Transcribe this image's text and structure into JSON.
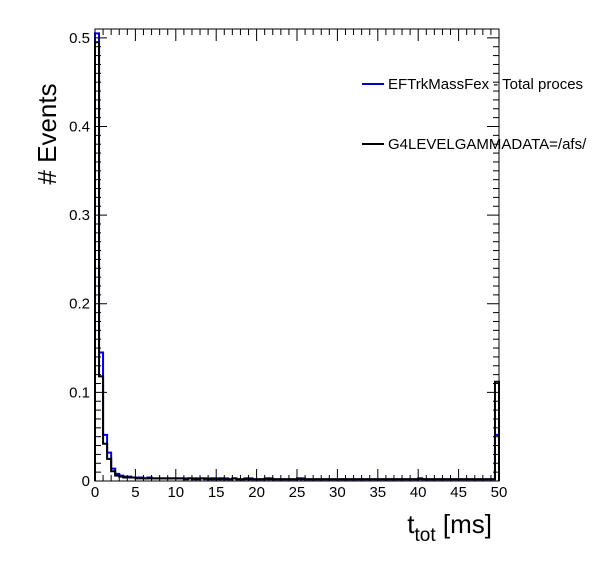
{
  "chart_data": {
    "type": "step-histogram",
    "xlabel": {
      "main": "t",
      "sub": "tot",
      "unit": " [ms]"
    },
    "ylabel": "# Events",
    "xlim": [
      0,
      50
    ],
    "ylim": [
      0,
      0.51
    ],
    "x_ticks": [
      "0",
      "5",
      "10",
      "15",
      "20",
      "25",
      "30",
      "35",
      "40",
      "45",
      "50"
    ],
    "y_ticks": [
      "0",
      "0.1",
      "0.2",
      "0.3",
      "0.4",
      "0.5"
    ],
    "grid": false,
    "legend_position": "top-right",
    "bin_width": 0.5,
    "series": [
      {
        "name": "EFTrkMassFex - Total proces",
        "color": "#0000cc",
        "values": [
          0.505,
          0.145,
          0.052,
          0.032,
          0.014,
          0.008,
          0.006,
          0.005,
          0.005,
          0.004,
          0.004,
          0.004,
          0.003,
          0.004,
          0.003,
          0.003,
          0.003,
          0.003,
          0.003,
          0.003,
          0.003,
          0.003,
          0.003,
          0.003,
          0.002,
          0.003,
          0.003,
          0.002,
          0.003,
          0.002,
          0.003,
          0.002,
          0.003,
          0.002,
          0.003,
          0.002,
          0.002,
          0.002,
          0.003,
          0.002,
          0.002,
          0.002,
          0.002,
          0.003,
          0.002,
          0.002,
          0.002,
          0.002,
          0.002,
          0.002,
          0.002,
          0.003,
          0.002,
          0.002,
          0.002,
          0.002,
          0.002,
          0.002,
          0.002,
          0.002,
          0.002,
          0.002,
          0.002,
          0.002,
          0.002,
          0.002,
          0.002,
          0.002,
          0.002,
          0.002,
          0.002,
          0.002,
          0.002,
          0.002,
          0.002,
          0.002,
          0.002,
          0.002,
          0.002,
          0.002,
          0.002,
          0.002,
          0.002,
          0.002,
          0.002,
          0.002,
          0.002,
          0.002,
          0.002,
          0.002,
          0.002,
          0.002,
          0.002,
          0.002,
          0.002,
          0.002,
          0.002,
          0.002,
          0.002,
          0.052
        ]
      },
      {
        "name": "G4LEVELGAMMADATA=/afs/",
        "color": "#000000",
        "values": [
          0.495,
          0.118,
          0.042,
          0.025,
          0.011,
          0.006,
          0.005,
          0.004,
          0.004,
          0.004,
          0.003,
          0.003,
          0.003,
          0.003,
          0.003,
          0.003,
          0.003,
          0.003,
          0.003,
          0.003,
          0.003,
          0.003,
          0.002,
          0.003,
          0.003,
          0.002,
          0.003,
          0.003,
          0.002,
          0.003,
          0.002,
          0.003,
          0.002,
          0.002,
          0.003,
          0.002,
          0.002,
          0.003,
          0.002,
          0.002,
          0.002,
          0.002,
          0.003,
          0.002,
          0.002,
          0.002,
          0.002,
          0.002,
          0.002,
          0.002,
          0.003,
          0.002,
          0.002,
          0.002,
          0.002,
          0.002,
          0.002,
          0.002,
          0.002,
          0.002,
          0.002,
          0.002,
          0.002,
          0.002,
          0.002,
          0.002,
          0.002,
          0.002,
          0.002,
          0.002,
          0.002,
          0.002,
          0.002,
          0.002,
          0.002,
          0.002,
          0.002,
          0.002,
          0.002,
          0.002,
          0.003,
          0.002,
          0.002,
          0.002,
          0.002,
          0.002,
          0.002,
          0.002,
          0.002,
          0.002,
          0.002,
          0.002,
          0.002,
          0.002,
          0.002,
          0.002,
          0.002,
          0.002,
          0.002,
          0.112
        ]
      }
    ]
  }
}
